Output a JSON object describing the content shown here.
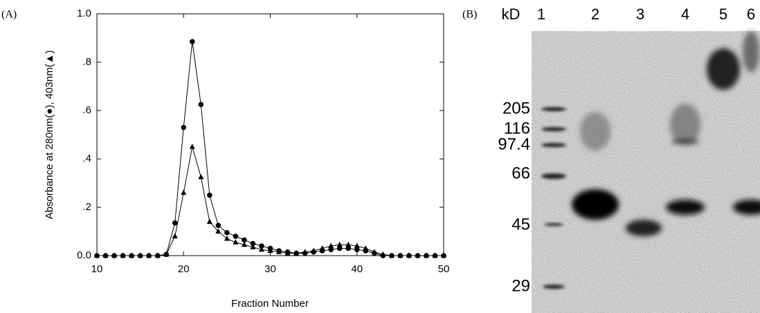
{
  "chart_data": {
    "type": "line",
    "panel": "(A)",
    "xlabel": "Fraction Number",
    "ylabel": "Absorbance at 280nm(●), 403nm(▲)",
    "x": [
      10,
      11,
      12,
      13,
      14,
      15,
      16,
      17,
      18,
      19,
      20,
      21,
      22,
      23,
      24,
      25,
      26,
      27,
      28,
      29,
      30,
      31,
      32,
      33,
      34,
      35,
      36,
      37,
      38,
      39,
      40,
      41,
      42,
      43,
      44,
      45,
      46,
      47,
      48,
      49,
      50
    ],
    "series": [
      {
        "marker": "circle",
        "color": "#000000",
        "values": [
          0,
          0,
          0,
          0,
          0,
          0,
          0,
          0,
          0.005,
          0.135,
          0.53,
          0.885,
          0.625,
          0.25,
          0.125,
          0.095,
          0.08,
          0.065,
          0.05,
          0.04,
          0.03,
          0.02,
          0.015,
          0.01,
          0.01,
          0.015,
          0.02,
          0.025,
          0.03,
          0.03,
          0.025,
          0.02,
          0.01,
          0,
          0,
          0,
          0,
          0,
          0,
          0,
          0
        ]
      },
      {
        "marker": "triangle",
        "color": "#000000",
        "values": [
          0,
          0,
          0,
          0,
          0,
          0,
          0,
          0,
          0.005,
          0.08,
          0.26,
          0.45,
          0.325,
          0.14,
          0.1,
          0.07,
          0.055,
          0.045,
          0.035,
          0.025,
          0.02,
          0.015,
          0.01,
          0.01,
          0.015,
          0.02,
          0.03,
          0.04,
          0.045,
          0.045,
          0.04,
          0.03,
          0.015,
          0.005,
          0,
          0,
          0,
          0,
          0,
          0,
          0
        ]
      }
    ],
    "xlim": [
      10,
      50
    ],
    "xticks": [
      10,
      20,
      30,
      40,
      50
    ],
    "ylim": [
      0,
      1
    ],
    "yticks": [
      {
        "value": 0,
        "label": "0.0"
      },
      {
        "value": 0.2,
        "label": ".2"
      },
      {
        "value": 0.4,
        "label": ".4"
      },
      {
        "value": 0.6,
        "label": ".6"
      },
      {
        "value": 0.8,
        "label": ".8"
      },
      {
        "value": 1,
        "label": "1.0"
      }
    ],
    "grid": false
  },
  "gel": {
    "panel": "(B)",
    "unit": "kD",
    "lanes": [
      "1",
      "2",
      "3",
      "4",
      "5",
      "6"
    ],
    "markers": [
      "205",
      "116",
      "97.4",
      "66",
      "45",
      "29"
    ]
  }
}
